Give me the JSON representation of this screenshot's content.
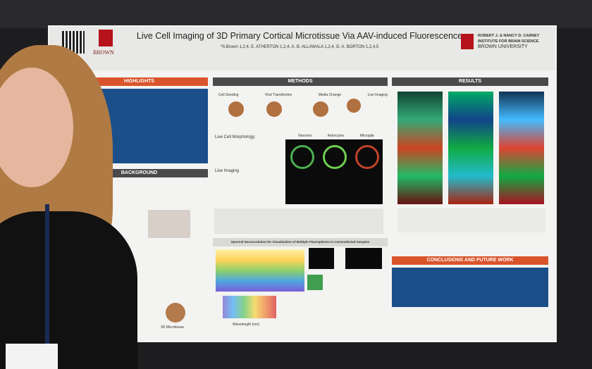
{
  "poster": {
    "title": "Live Cell Imaging of 3D Primary Cortical Microtissue Via AAV-induced Fluorescence",
    "authors": "*S.Brown 1,2,4, E. ATHERTON 1,2,4, A. B. ALLAWALA 1,2,4, D. A. BORTON 1,2,4,5",
    "logo_left": "BROWN",
    "logo_right": [
      "ROBERT J. & NANCY D. CARNEY",
      "INSTITUTE FOR BRAIN SCIENCE",
      "BROWN UNIVERSITY"
    ],
    "sections": {
      "highlights": "HIGHLIGHTS",
      "background": "BACKGROUND",
      "methods": "METHODS",
      "results": "RESULTS",
      "conclusions": "CONCLUSIONS AND FUTURE WORK"
    },
    "methods_steps": [
      "Cell Seeding",
      "Viral Transfection",
      "Media Change",
      "Live Imaging"
    ],
    "cell_types": [
      "Neurons",
      "Astrocytes",
      "Microglia"
    ],
    "subheads": [
      "Live Cell Morphology:",
      "Live Imaging"
    ],
    "spectral_title": "Spectral Deconvolution for Visualization of Multiple Fluorophores in Cotransfected Samples",
    "x_axis_label": "Wavelength (nm)",
    "microtissue_label": "3D Microtissue"
  }
}
